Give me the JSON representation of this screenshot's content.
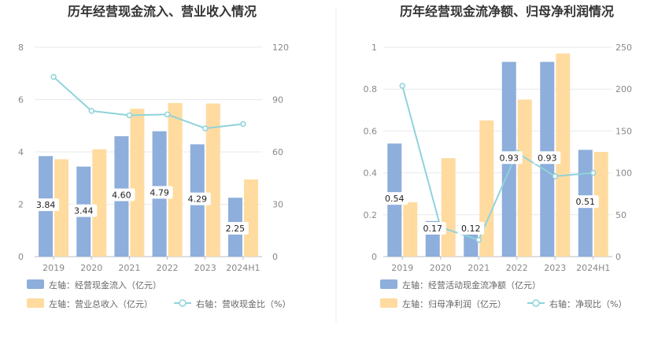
{
  "colors": {
    "bar_primary": "#8eaedc",
    "bar_secondary": "#ffdba0",
    "line": "#8fd3da",
    "grid": "#e6e9ef",
    "axis": "#b8bcc4"
  },
  "chart_data": [
    {
      "type": "bar",
      "title": "历年经营现金流入、营业收入情况",
      "categories": [
        "2019",
        "2020",
        "2021",
        "2022",
        "2023",
        "2024H1"
      ],
      "left_axis": {
        "ylim": [
          0,
          8
        ],
        "ticks": [
          "0",
          "2",
          "4",
          "6",
          "8"
        ]
      },
      "right_axis": {
        "ylim": [
          0,
          120
        ],
        "ticks": [
          "0",
          "30",
          "60",
          "90",
          "120"
        ]
      },
      "series": [
        {
          "name": "左轴：经营现金流入（亿元）",
          "kind": "bar",
          "axis": "left",
          "values": [
            3.84,
            3.44,
            4.6,
            4.79,
            4.29,
            2.25
          ],
          "labels": [
            "3.84",
            "3.44",
            "4.60",
            "4.79",
            "4.29",
            "2.25"
          ]
        },
        {
          "name": "左轴：营业总收入（亿元）",
          "kind": "bar",
          "axis": "left",
          "values": [
            3.72,
            4.1,
            5.65,
            5.87,
            5.85,
            2.95
          ]
        },
        {
          "name": "右轴：营收现金比（%）",
          "kind": "line",
          "axis": "right",
          "values": [
            103,
            83.5,
            81,
            81.5,
            73.5,
            76
          ]
        }
      ],
      "legend_position": "bottom"
    },
    {
      "type": "bar",
      "title": "历年经营现金流净额、归母净利润情况",
      "categories": [
        "2019",
        "2020",
        "2021",
        "2022",
        "2023",
        "2024H1"
      ],
      "left_axis": {
        "ylim": [
          0,
          1
        ],
        "ticks": [
          "0",
          "0.2",
          "0.4",
          "0.6",
          "0.8",
          "1"
        ]
      },
      "right_axis": {
        "ylim": [
          0,
          250
        ],
        "ticks": [
          "0",
          "50",
          "100",
          "150",
          "200",
          "250"
        ]
      },
      "series": [
        {
          "name": "左轴：经营活动现金流净额（亿元）",
          "kind": "bar",
          "axis": "left",
          "values": [
            0.54,
            0.17,
            0.12,
            0.93,
            0.93,
            0.51
          ],
          "labels": [
            "0.54",
            "0.17",
            "0.12",
            "0.93",
            "0.93",
            "0.51"
          ]
        },
        {
          "name": "左轴：归母净利润（亿元）",
          "kind": "bar",
          "axis": "left",
          "values": [
            0.26,
            0.47,
            0.65,
            0.75,
            0.97,
            0.5
          ]
        },
        {
          "name": "右轴：净现比（%）",
          "kind": "line",
          "axis": "right",
          "values": [
            204,
            35,
            20,
            124,
            96,
            100
          ]
        }
      ],
      "legend_position": "bottom"
    }
  ]
}
